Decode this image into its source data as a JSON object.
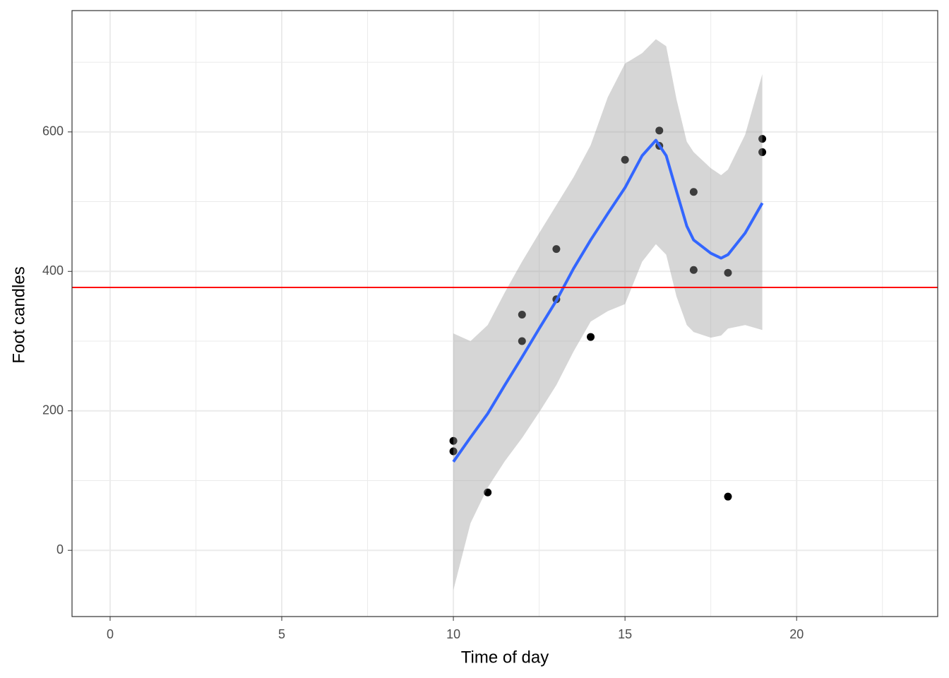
{
  "chart_data": {
    "type": "scatter",
    "xlabel": "Time of day",
    "ylabel": "Foot candles",
    "xlim": [
      -1.11,
      24.11
    ],
    "ylim": [
      -95,
      774
    ],
    "xticks": [
      0,
      5,
      10,
      15,
      20
    ],
    "yticks": [
      0,
      200,
      400,
      600
    ],
    "xminor": [
      2.5,
      7.5,
      12.5,
      17.5,
      22.5
    ],
    "yminor": [
      100,
      300,
      500,
      700
    ],
    "grid": true,
    "points": {
      "color": "#000000",
      "x": [
        10,
        10,
        11,
        12,
        12,
        13,
        13,
        14,
        15,
        16,
        16,
        17,
        17,
        18,
        18,
        19,
        19
      ],
      "y": [
        157,
        142,
        83,
        338,
        300,
        432,
        360,
        306,
        560,
        602,
        580,
        514,
        402,
        398,
        77,
        590,
        571
      ]
    },
    "smooth": {
      "color": "#3366ff",
      "band_color": "#999999",
      "x": [
        10,
        10.5,
        11,
        11.5,
        12,
        12.5,
        13,
        13.5,
        14,
        14.5,
        15,
        15.5,
        15.9,
        16.2,
        16.5,
        16.8,
        17,
        17.5,
        17.8,
        18,
        18.5,
        19
      ],
      "y": [
        127,
        162,
        196,
        237,
        277,
        318,
        358,
        404,
        445,
        483,
        520,
        566,
        588,
        566,
        515,
        465,
        445,
        426,
        419,
        424,
        455,
        498
      ],
      "lower": [
        -57,
        39,
        90,
        128,
        161,
        198,
        237,
        285,
        328,
        343,
        353,
        414,
        439,
        424,
        364,
        323,
        313,
        305,
        308,
        318,
        323,
        316
      ],
      "upper": [
        311,
        300,
        323,
        370,
        414,
        455,
        495,
        535,
        581,
        650,
        698,
        713,
        733,
        723,
        647,
        586,
        571,
        548,
        538,
        546,
        596,
        683
      ]
    },
    "hline": {
      "value": 377,
      "color": "#ff0000"
    }
  }
}
